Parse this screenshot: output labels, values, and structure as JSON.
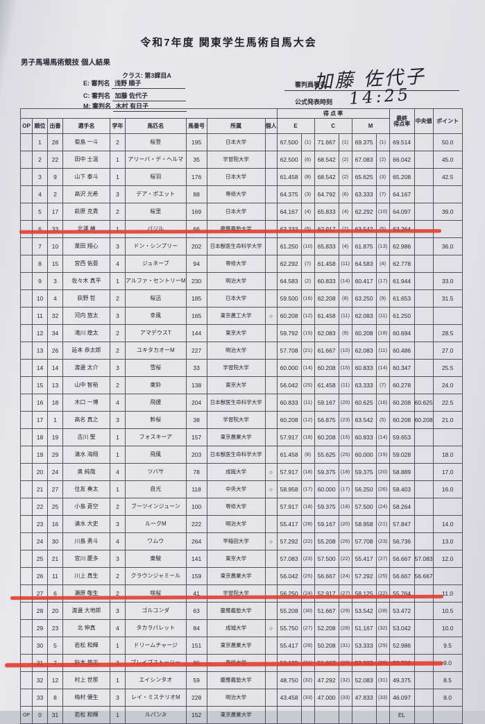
{
  "page": {
    "title": "令和7年度  関東学生馬術自馬大会",
    "subtitle": "男子馬場馬術競技 個人結果",
    "class_label": "クラス:  第3課目A",
    "judges": [
      {
        "pos": "E:",
        "label": "審判名",
        "name": "浅野 順子"
      },
      {
        "pos": "C:",
        "label": "審判名",
        "name": "加藤 佐代子"
      },
      {
        "pos": "M:",
        "label": "審判名",
        "name": "木村 有日子"
      }
    ],
    "signature_label": "審判員署名",
    "signature_value": "加藤 佐代子",
    "publish_label": "公式発表時刻",
    "publish_value": "14:25"
  },
  "table": {
    "group_header": "得  点  率",
    "columns": {
      "op": "OP",
      "rank": "順位",
      "no": "出番",
      "rider": "選手名",
      "grade": "学年",
      "horse": "馬匹名",
      "horse_no": "馬番号",
      "aff": "所属",
      "indiv": "個人",
      "e": "E",
      "c": "C",
      "m": "M",
      "final_line1": "最終",
      "final_line2": "得点率",
      "median": "中央値",
      "points": "ポイント"
    },
    "rows": [
      [
        "",
        "1",
        "28",
        "菊島 一斗",
        "2",
        "桜登",
        "195",
        "日本大学",
        "",
        "67.500",
        "(1)",
        "71.667",
        "(1)",
        "69.375",
        "(1)",
        "69.514",
        "",
        "50.0"
      ],
      [
        "",
        "2",
        "22",
        "田中 士温",
        "1",
        "アリーバ・デ・ヘルマ",
        "35",
        "学習院大学",
        "",
        "62.500",
        "(6)",
        "68.542",
        "(2)",
        "67.083",
        "(2)",
        "66.042",
        "",
        "45.0"
      ],
      [
        "",
        "3",
        "9",
        "山下 泰斗",
        "1",
        "桜羽",
        "176",
        "日本大学",
        "",
        "61.458",
        "(8)",
        "68.542",
        "(2)",
        "65.625",
        "(3)",
        "65.208",
        "",
        "42.5"
      ],
      [
        "",
        "4",
        "2",
        "高沢 光希",
        "3",
        "デア・ポエット",
        "88",
        "専修大学",
        "",
        "64.375",
        "(3)",
        "64.792",
        "(6)",
        "63.333",
        "(7)",
        "64.167",
        "",
        ""
      ],
      [
        "",
        "5",
        "17",
        "萩原 克貴",
        "2",
        "桜里",
        "169",
        "日本大学",
        "",
        "64.167",
        "(4)",
        "65.833",
        "(4)",
        "62.292",
        "(10)",
        "64.097",
        "",
        "39.0"
      ],
      [
        "",
        "6",
        "33",
        "北浦 椿",
        "1",
        "バジル",
        "66",
        "慶應義塾大学",
        "",
        "63.333",
        "(5)",
        "62.917",
        "(7)",
        "63.542",
        "(5)",
        "63.264",
        "",
        ""
      ],
      [
        "",
        "7",
        "10",
        "栗田 翔心",
        "3",
        "ドン・シンプリー",
        "202",
        "日本獣医生命科学大学",
        "",
        "61.250",
        "(10)",
        "65.833",
        "(4)",
        "61.875",
        "(13)",
        "62.986",
        "",
        "36.0"
      ],
      [
        "",
        "8",
        "15",
        "宮西 佑亜",
        "4",
        "ジュネーブ",
        "94",
        "専修大学",
        "",
        "62.292",
        "(7)",
        "61.458",
        "(11)",
        "64.583",
        "(4)",
        "62.778",
        "",
        ""
      ],
      [
        "",
        "9",
        "3",
        "佐々木 真平",
        "1",
        "アルファ・セントリーM",
        "230",
        "明治大学",
        "",
        "64.583",
        "(2)",
        "60.833",
        "(14)",
        "60.417",
        "(17)",
        "61.944",
        "",
        "33.0"
      ],
      [
        "",
        "10",
        "4",
        "荻野 哲",
        "2",
        "桜迅",
        "185",
        "日本大学",
        "",
        "59.500",
        "(16)",
        "62.208",
        "(8)",
        "63.250",
        "(9)",
        "61.653",
        "",
        "31.5"
      ],
      [
        "",
        "11",
        "32",
        "河内 悠太",
        "3",
        "幸風",
        "165",
        "東京農工大学",
        "○",
        "60.208",
        "(12)",
        "61.458",
        "(11)",
        "62.083",
        "(11)",
        "61.250",
        "",
        ""
      ],
      [
        "",
        "12",
        "34",
        "滝川 煌太",
        "2",
        "アマデウスT",
        "144",
        "東京大学",
        "",
        "59.792",
        "(15)",
        "62.083",
        "(9)",
        "60.208",
        "(18)",
        "60.694",
        "",
        "28.5"
      ],
      [
        "",
        "13",
        "26",
        "延本 恭太郎",
        "2",
        "ユキタカオーM",
        "227",
        "明治大学",
        "",
        "57.708",
        "(21)",
        "61.667",
        "(10)",
        "62.083",
        "(11)",
        "60.486",
        "",
        "27.0"
      ],
      [
        "",
        "14",
        "14",
        "渡邊 太介",
        "3",
        "雪桜",
        "33",
        "学習院大学",
        "",
        "60.000",
        "(14)",
        "60.208",
        "(15)",
        "60.833",
        "(14)",
        "60.347",
        "",
        "25.5"
      ],
      [
        "",
        "15",
        "13",
        "山中 智裕",
        "2",
        "東鈴",
        "138",
        "東京大学",
        "",
        "56.042",
        "(25)",
        "61.458",
        "(11)",
        "63.333",
        "(7)",
        "60.278",
        "",
        "24.0"
      ],
      [
        "",
        "16",
        "18",
        "木口 一博",
        "4",
        "飛援",
        "204",
        "日本獣医生命科学大学",
        "",
        "60.833",
        "(11)",
        "59.167",
        "(20)",
        "60.625",
        "(16)",
        "60.208",
        "60.625",
        "22.5"
      ],
      [
        "",
        "17",
        "1",
        "高名 真之",
        "3",
        "幹桜",
        "38",
        "学習院大学",
        "",
        "60.208",
        "(12)",
        "56.875",
        "(23)",
        "63.542",
        "(5)",
        "60.208",
        "60.208",
        "21.0"
      ],
      [
        "",
        "18",
        "19",
        "古川 聖",
        "1",
        "フォスキーア",
        "157",
        "東京農業大学",
        "",
        "57.917",
        "(18)",
        "60.208",
        "(15)",
        "60.833",
        "(14)",
        "59.653",
        "",
        ""
      ],
      [
        "",
        "19",
        "29",
        "清水 海翔",
        "1",
        "飛風",
        "203",
        "日本獣医生命科学大学",
        "",
        "61.458",
        "(8)",
        "55.625",
        "(25)",
        "60.000",
        "(19)",
        "59.028",
        "",
        "18.0"
      ],
      [
        "",
        "20",
        "24",
        "奥 純哉",
        "4",
        "ツバサ",
        "78",
        "成蹊大学",
        "○",
        "57.917",
        "(18)",
        "59.375",
        "(18)",
        "59.375",
        "(20)",
        "58.889",
        "",
        "17.0"
      ],
      [
        "",
        "21",
        "27",
        "住友 奏太",
        "1",
        "自光",
        "118",
        "中央大学",
        "○",
        "58.958",
        "(17)",
        "60.000",
        "(17)",
        "56.250",
        "(26)",
        "58.403",
        "",
        "16.0"
      ],
      [
        "",
        "22",
        "25",
        "小島 蒼空",
        "2",
        "ブーツインジューン",
        "100",
        "専修大学",
        "",
        "57.917",
        "(18)",
        "59.375",
        "(18)",
        "57.500",
        "(24)",
        "58.264",
        "",
        ""
      ],
      [
        "",
        "23",
        "16",
        "清水 大史",
        "3",
        "ルークM",
        "222",
        "明治大学",
        "",
        "55.417",
        "(28)",
        "59.167",
        "(20)",
        "58.958",
        "(21)",
        "57.847",
        "",
        "14.0"
      ],
      [
        "",
        "24",
        "30",
        "川島 勇斗",
        "4",
        "ワムウ",
        "264",
        "早稲田大学",
        "○",
        "57.292",
        "(22)",
        "55.208",
        "(26)",
        "57.708",
        "(23)",
        "56.736",
        "",
        "13.0"
      ],
      [
        "",
        "25",
        "21",
        "宮川 慶多",
        "3",
        "東駿",
        "141",
        "東京大学",
        "",
        "57.083",
        "(23)",
        "57.500",
        "(22)",
        "55.417",
        "(27)",
        "56.667",
        "57.083",
        "12.0"
      ],
      [
        "",
        "26",
        "11",
        "川上 真生",
        "2",
        "クラウンジャミール",
        "159",
        "東京農業大学",
        "",
        "56.042",
        "(25)",
        "56.667",
        "(24)",
        "57.292",
        "(25)",
        "56.667",
        "56.667",
        ""
      ],
      [
        "",
        "27",
        "6",
        "瀬原 敬生",
        "2",
        "咲桜",
        "41",
        "学習院大学",
        "",
        "56.250",
        "(24)",
        "52.917",
        "(27)",
        "58.125",
        "(22)",
        "55.764",
        "",
        "11.0"
      ],
      [
        "",
        "28",
        "20",
        "渡邊 大地郎",
        "3",
        "ゴルコンダ",
        "63",
        "慶應義塾大学",
        "",
        "55.208",
        "(30)",
        "51.667",
        "(29)",
        "53.542",
        "(28)",
        "53.472",
        "",
        "10.5"
      ],
      [
        "",
        "29",
        "23",
        "北 伸真",
        "4",
        "タカラパレット",
        "84",
        "成城大学",
        "○",
        "55.750",
        "(27)",
        "52.208",
        "(28)",
        "51.167",
        "(32)",
        "53.042",
        "",
        "10.0"
      ],
      [
        "",
        "30",
        "5",
        "若松 和輝",
        "1",
        "ドリームチャージ",
        "151",
        "東京農業大学",
        "",
        "55.417",
        "(28)",
        "50.208",
        "(31)",
        "53.333",
        "(29)",
        "52.986",
        "",
        "9.5"
      ],
      [
        "",
        "31",
        "7",
        "鈴木 悠正",
        "3",
        "ブレイブストーリー",
        "86",
        "専修大学",
        "",
        "53.125",
        "(31)",
        "51.667",
        "(29)",
        "53.333",
        "(29)",
        "52.708",
        "",
        "9.0"
      ],
      [
        "",
        "32",
        "12",
        "村上 世那",
        "1",
        "エイシンタオ",
        "59",
        "慶應義塾大学",
        "",
        "48.750",
        "(32)",
        "47.292",
        "(32)",
        "52.083",
        "(31)",
        "49.375",
        "",
        "8.5"
      ],
      [
        "",
        "33",
        "8",
        "梅村 優生",
        "3",
        "レイ・ミステリオM",
        "228",
        "明治大学",
        "",
        "43.458",
        "(33)",
        "47.000",
        "(33)",
        "47.833",
        "(33)",
        "46.097",
        "",
        "8.0"
      ],
      [
        "OP",
        "0",
        "31",
        "若松 和輝",
        "1",
        "ルパンJr",
        "152",
        "東京農業大学",
        "",
        "",
        "",
        "",
        "",
        "",
        "",
        "EL",
        "",
        ""
      ]
    ]
  }
}
